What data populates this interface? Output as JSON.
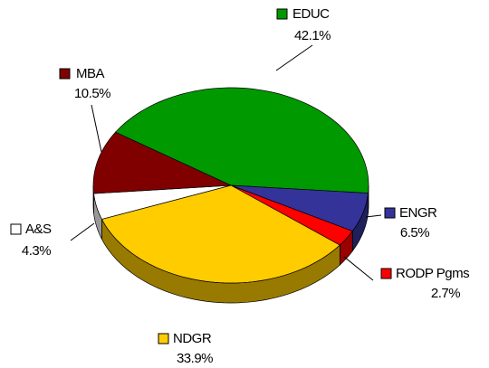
{
  "chart_data": {
    "type": "pie",
    "categories": [
      "EDUC",
      "ENGR",
      "RODP Pgms",
      "NDGR",
      "A&S",
      "MBA"
    ],
    "values": [
      42.1,
      6.5,
      2.7,
      33.9,
      4.3,
      10.5
    ],
    "value_labels": [
      "42.1%",
      "6.5%",
      "2.7%",
      "33.9%",
      "4.3%",
      "10.5%"
    ],
    "colors": [
      "#009900",
      "#333399",
      "#ff0000",
      "#ffcc00",
      "#ffffff",
      "#800000"
    ]
  }
}
